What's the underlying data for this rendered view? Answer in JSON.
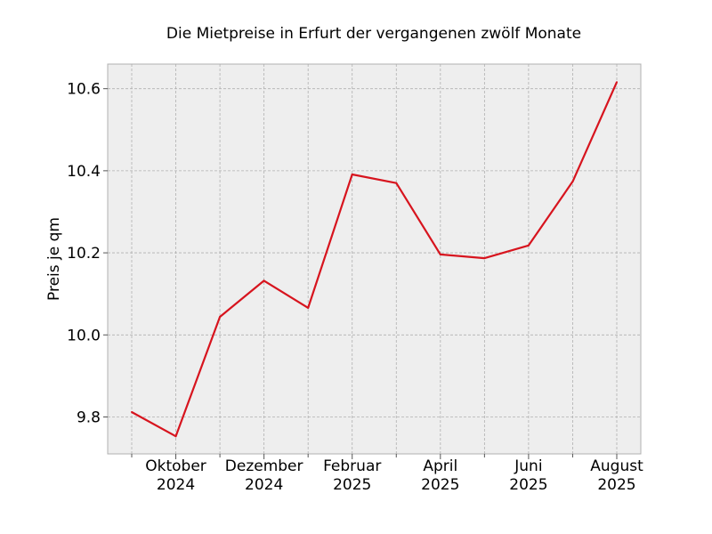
{
  "chart_data": {
    "type": "line",
    "title": "Die Mietpreise in Erfurt der vergangenen zwölf Monate",
    "xlabel": "",
    "ylabel": "Preis je qm",
    "x": [
      "2024-09",
      "2024-10",
      "2024-11",
      "2024-12",
      "2025-01",
      "2025-02",
      "2025-03",
      "2025-04",
      "2025-05",
      "2025-06",
      "2025-07",
      "2025-08"
    ],
    "series": [
      {
        "values": [
          9.812,
          9.753,
          10.044,
          10.132,
          10.066,
          10.391,
          10.37,
          10.196,
          10.187,
          10.218,
          10.374,
          10.616
        ]
      }
    ],
    "ylim": [
      9.71,
      10.66
    ],
    "yticks": [
      "9.8",
      "10.0",
      "10.2",
      "10.4",
      "10.6"
    ],
    "xticks": [
      {
        "x": "2024-10",
        "month": "Oktober",
        "year": "2024"
      },
      {
        "x": "2024-12",
        "month": "Dezember",
        "year": "2024"
      },
      {
        "x": "2025-02",
        "month": "Februar",
        "year": "2025"
      },
      {
        "x": "2025-04",
        "month": "April",
        "year": "2025"
      },
      {
        "x": "2025-06",
        "month": "Juni",
        "year": "2025"
      },
      {
        "x": "2025-08",
        "month": "August",
        "year": "2025"
      }
    ],
    "grid": true,
    "line_color": "#d7141e",
    "plot_background": "#eeeeee"
  }
}
